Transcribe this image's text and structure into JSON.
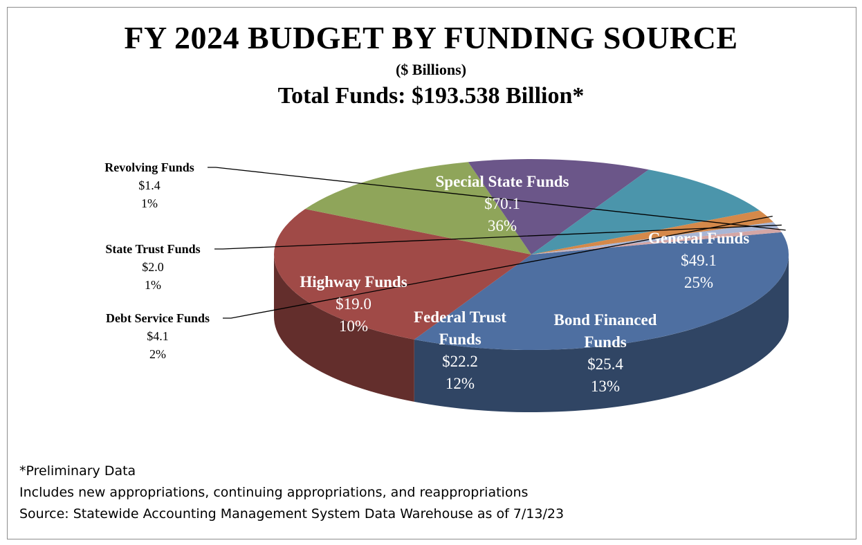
{
  "header": {
    "title": "FY 2024 BUDGET BY FUNDING SOURCE",
    "subtitle": "($ Billions)",
    "total_line": "Total Funds: $193.538 Billion*"
  },
  "footer": {
    "note1": "*Preliminary Data",
    "note2": "Includes new  appropriations, continuing appropriations, and reappropriations",
    "note3": "Source: Statewide Accounting Management System Data Warehouse as of 7/13/23"
  },
  "colors": {
    "special_state": "#4e6fa1",
    "general": "#a04a47",
    "bond_financed": "#8fa55a",
    "federal_trust": "#6b5689",
    "highway": "#4b95ab",
    "debt_service": "#d5894a",
    "state_trust": "#a8b6d6",
    "revolving": "#d4a6a5"
  },
  "chart_data": {
    "type": "pie",
    "title": "FY 2024 BUDGET BY FUNDING SOURCE",
    "subtitle": "($ Billions)",
    "total_label": "Total Funds: $193.538 Billion*",
    "unit": "$ Billions",
    "style": "3d-exploded-none",
    "slices": [
      {
        "name": "Special State Funds",
        "label_lines": [
          "Special State Funds"
        ],
        "value": 70.1,
        "value_label": "$70.1",
        "percent_label": "36%",
        "color": "#4e6fa1"
      },
      {
        "name": "General Funds",
        "label_lines": [
          "General Funds"
        ],
        "value": 49.1,
        "value_label": "$49.1",
        "percent_label": "25%",
        "color": "#a04a47"
      },
      {
        "name": "Bond Financed Funds",
        "label_lines": [
          "Bond Financed",
          "Funds"
        ],
        "value": 25.4,
        "value_label": "$25.4",
        "percent_label": "13%",
        "color": "#8fa55a"
      },
      {
        "name": "Federal Trust Funds",
        "label_lines": [
          "Federal Trust",
          "Funds"
        ],
        "value": 22.2,
        "value_label": "$22.2",
        "percent_label": "12%",
        "color": "#6b5689"
      },
      {
        "name": "Highway Funds",
        "label_lines": [
          "Highway Funds"
        ],
        "value": 19.0,
        "value_label": "$19.0",
        "percent_label": "10%",
        "color": "#4b95ab"
      },
      {
        "name": "Debt Service Funds",
        "label_lines": [
          "Debt Service Funds"
        ],
        "value": 4.1,
        "value_label": "$4.1",
        "percent_label": "2%",
        "color": "#d5894a"
      },
      {
        "name": "State Trust Funds",
        "label_lines": [
          "State Trust Funds"
        ],
        "value": 2.0,
        "value_label": "$2.0",
        "percent_label": "1%",
        "color": "#a8b6d6"
      },
      {
        "name": "Revolving Funds",
        "label_lines": [
          "Revolving Funds"
        ],
        "value": 1.4,
        "value_label": "$1.4",
        "percent_label": "1%",
        "color": "#d4a6a5"
      }
    ]
  }
}
